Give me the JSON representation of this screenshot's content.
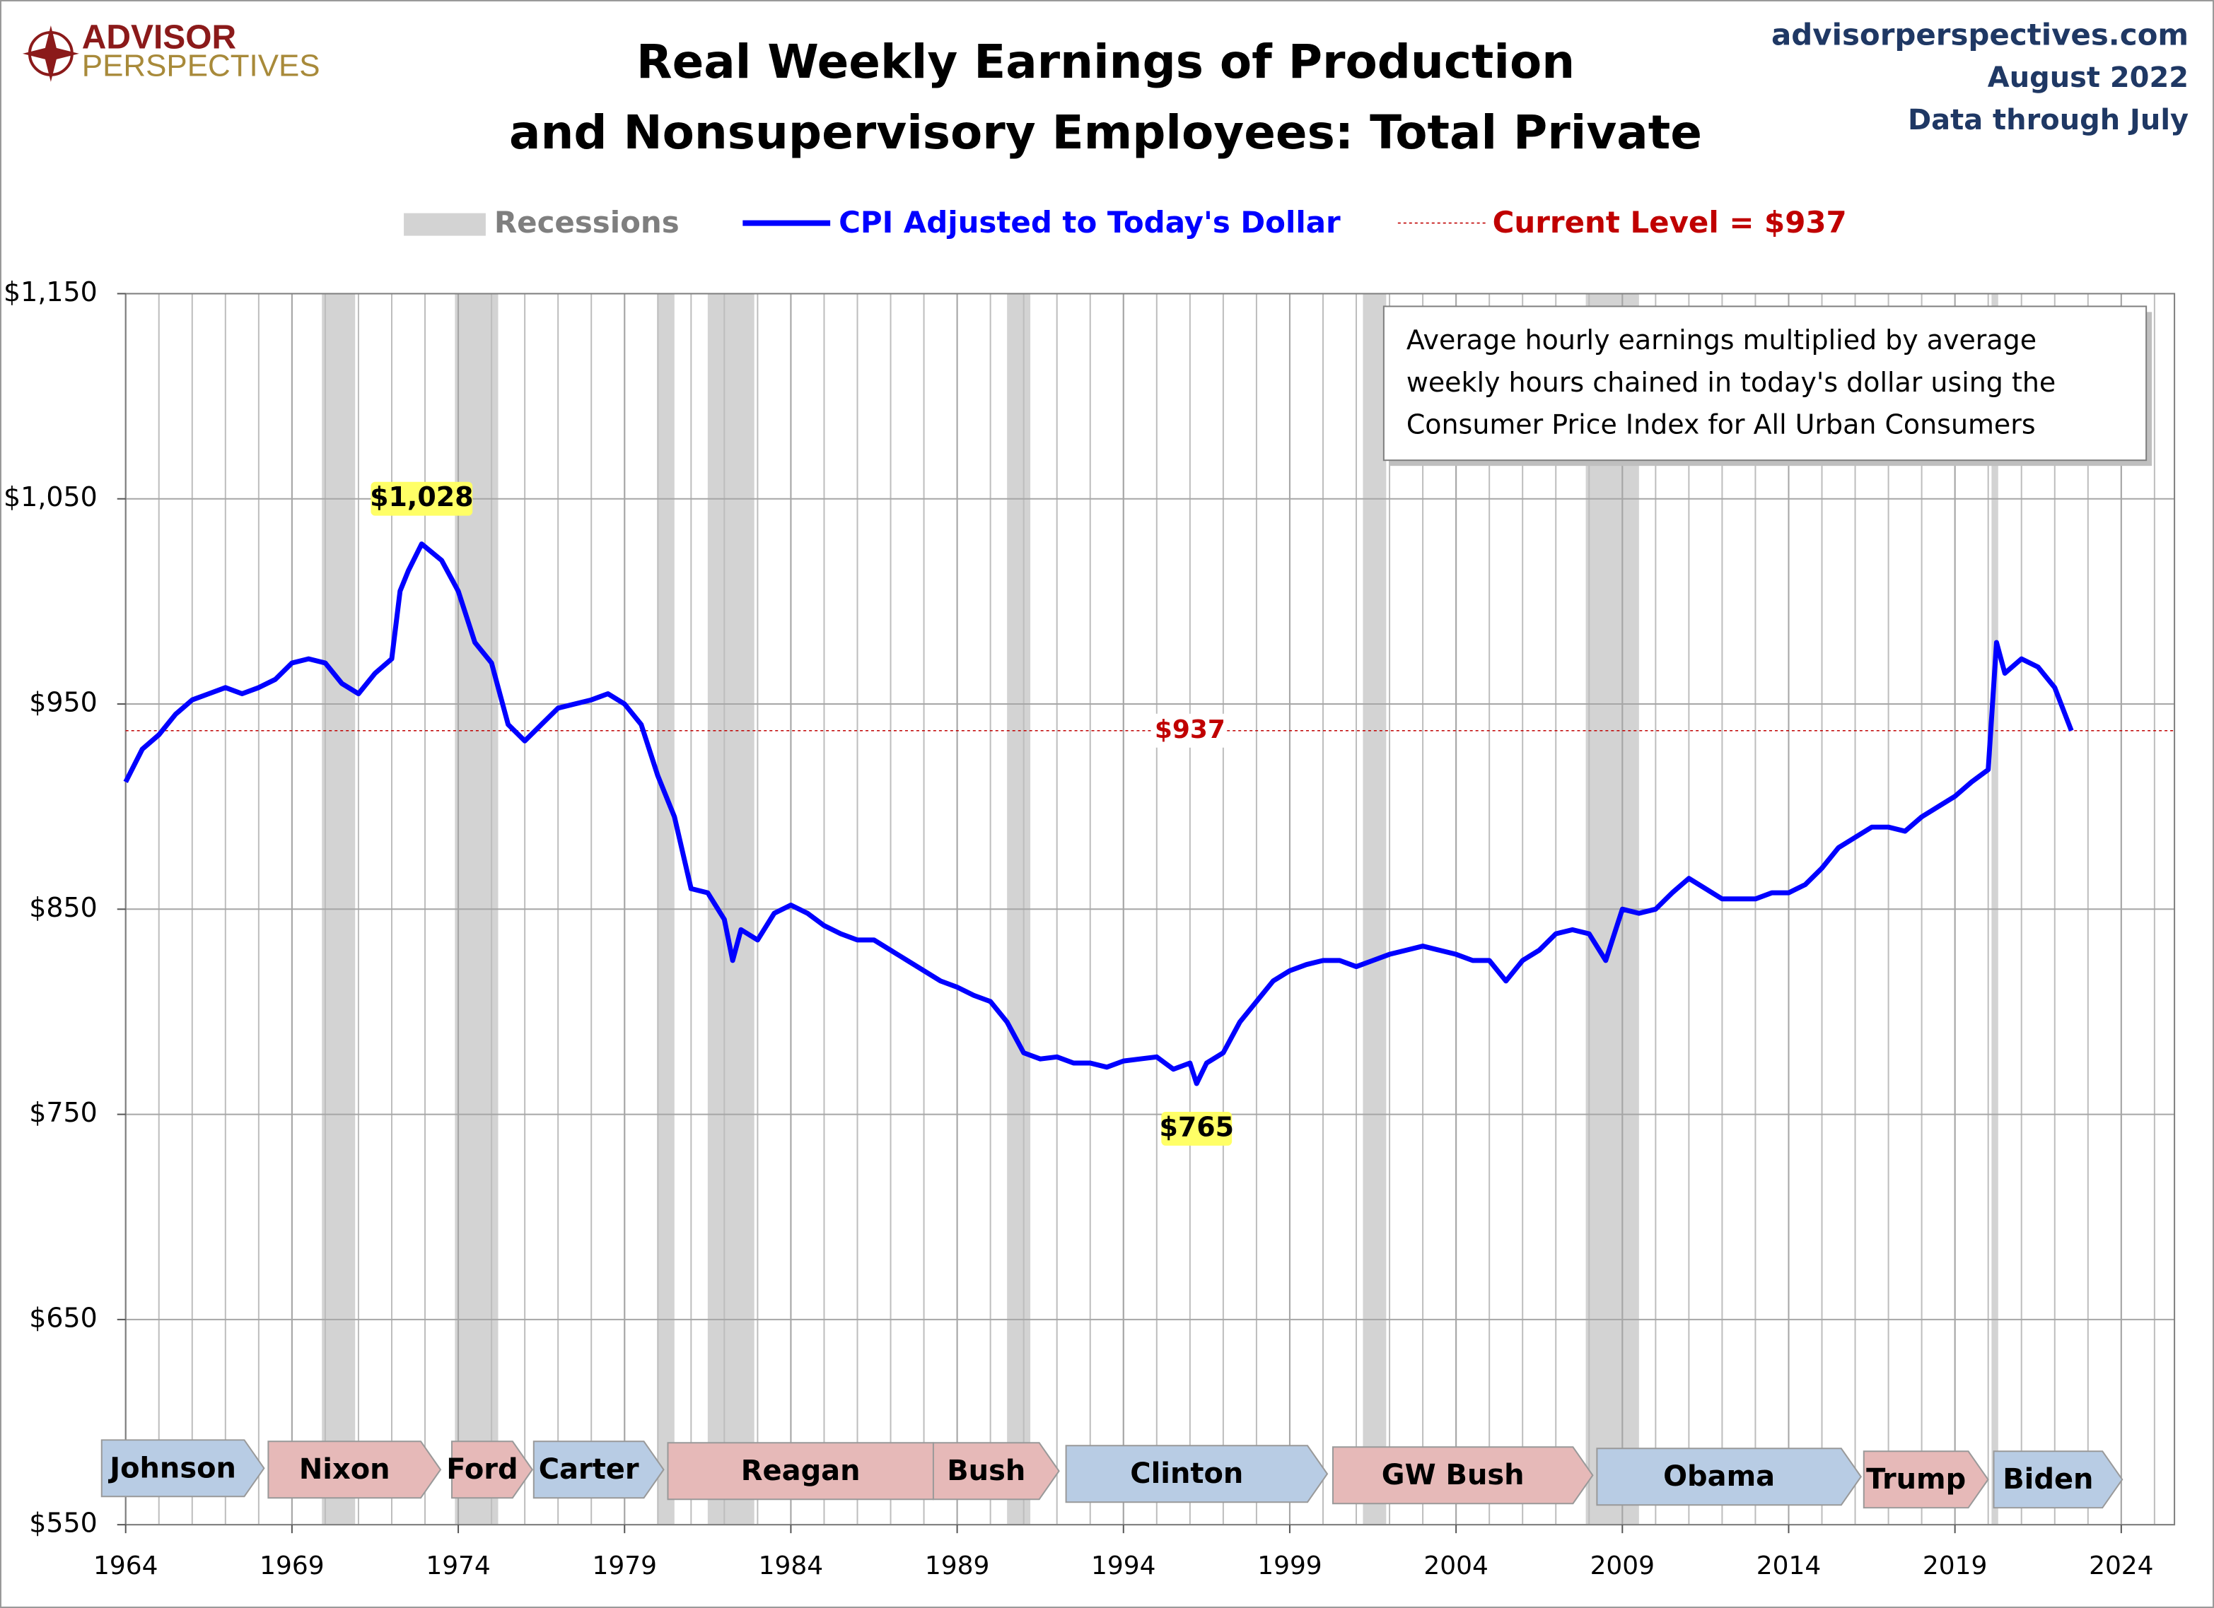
{
  "chart_data": {
    "type": "line",
    "title": [
      "Real Weekly Earnings of Production",
      "and Nonsupervisory Employees: Total Private"
    ],
    "logo": [
      "ADVISOR",
      "PERSPECTIVES"
    ],
    "source": [
      "advisorperspectives.com",
      "August 2022",
      "Data through July"
    ],
    "note": [
      "Average hourly earnings multiplied by average",
      "weekly hours chained in today's dollar using the",
      "Consumer Price Index for All Urban Consumers"
    ],
    "xlim": [
      1964,
      2025.6
    ],
    "xticks": [
      1964,
      1969,
      1974,
      1979,
      1984,
      1989,
      1994,
      1999,
      2004,
      2009,
      2014,
      2019,
      2024
    ],
    "ylim": [
      550,
      1150
    ],
    "yticks": [
      {
        "value": 550,
        "label": "$550"
      },
      {
        "value": 650,
        "label": "$650"
      },
      {
        "value": 750,
        "label": "$750"
      },
      {
        "value": 850,
        "label": "$850"
      },
      {
        "value": 950,
        "label": "$950"
      },
      {
        "value": 1050,
        "label": "$1,050"
      },
      {
        "value": 1150,
        "label": "$1,150"
      }
    ],
    "grid": true,
    "recessions": {
      "label": "Recessions",
      "color": "#d3d3d3",
      "periods": [
        [
          1969.9,
          1970.9
        ],
        [
          1973.9,
          1975.2
        ],
        [
          1980.0,
          1980.5
        ],
        [
          1981.5,
          1982.9
        ],
        [
          1990.5,
          1991.2
        ],
        [
          2001.2,
          2001.9
        ],
        [
          2007.9,
          2009.5
        ],
        [
          2020.1,
          2020.3
        ]
      ]
    },
    "x": [
      1964.0,
      1964.5,
      1965.0,
      1965.5,
      1966.0,
      1966.5,
      1967.0,
      1967.5,
      1968.0,
      1968.5,
      1969.0,
      1969.5,
      1970.0,
      1970.5,
      1971.0,
      1971.5,
      1972.0,
      1972.25,
      1972.5,
      1972.9,
      1973.5,
      1974.0,
      1974.5,
      1975.0,
      1975.5,
      1976.0,
      1976.5,
      1977.0,
      1977.5,
      1978.0,
      1978.5,
      1979.0,
      1979.5,
      1980.0,
      1980.5,
      1981.0,
      1981.5,
      1982.0,
      1982.25,
      1982.5,
      1983.0,
      1983.5,
      1984.0,
      1984.5,
      1985.0,
      1985.5,
      1986.0,
      1986.5,
      1987.0,
      1987.5,
      1988.0,
      1988.5,
      1989.0,
      1989.5,
      1990.0,
      1990.5,
      1991.0,
      1991.5,
      1992.0,
      1992.5,
      1993.0,
      1993.5,
      1994.0,
      1994.5,
      1995.0,
      1995.5,
      1996.0,
      1996.2,
      1996.5,
      1997.0,
      1997.5,
      1998.0,
      1998.5,
      1999.0,
      1999.5,
      2000.0,
      2000.5,
      2001.0,
      2001.5,
      2002.0,
      2002.5,
      2003.0,
      2003.5,
      2004.0,
      2004.5,
      2005.0,
      2005.5,
      2006.0,
      2006.5,
      2007.0,
      2007.5,
      2008.0,
      2008.5,
      2009.0,
      2009.5,
      2010.0,
      2010.5,
      2011.0,
      2011.5,
      2012.0,
      2012.5,
      2013.0,
      2013.5,
      2014.0,
      2014.5,
      2015.0,
      2015.5,
      2016.0,
      2016.5,
      2017.0,
      2017.5,
      2018.0,
      2018.5,
      2019.0,
      2019.5,
      2020.0,
      2020.25,
      2020.5,
      2021.0,
      2021.5,
      2022.0,
      2022.5
    ],
    "series": [
      {
        "name": "CPI Adjusted to Today's Dollar",
        "color": "#0000ff",
        "values": [
          912,
          928,
          935,
          945,
          952,
          955,
          958,
          955,
          958,
          962,
          970,
          972,
          970,
          960,
          955,
          965,
          972,
          1005,
          1015,
          1028,
          1020,
          1005,
          980,
          970,
          940,
          932,
          940,
          948,
          950,
          952,
          955,
          950,
          940,
          915,
          895,
          860,
          858,
          845,
          825,
          840,
          835,
          848,
          852,
          848,
          842,
          838,
          835,
          835,
          830,
          825,
          820,
          815,
          812,
          808,
          805,
          795,
          780,
          777,
          778,
          775,
          775,
          773,
          776,
          777,
          778,
          772,
          775,
          765,
          775,
          780,
          795,
          805,
          815,
          820,
          823,
          825,
          825,
          822,
          825,
          828,
          830,
          832,
          830,
          828,
          825,
          825,
          815,
          825,
          830,
          838,
          840,
          838,
          825,
          850,
          848,
          850,
          858,
          865,
          860,
          855,
          855,
          855,
          858,
          858,
          862,
          870,
          880,
          885,
          890,
          890,
          888,
          895,
          900,
          905,
          912,
          918,
          980,
          965,
          972,
          968,
          958,
          937
        ]
      }
    ],
    "current_level": {
      "value": 937,
      "label": "$937",
      "legend": "Current Level = $937",
      "color": "#c00000"
    },
    "annotations": [
      {
        "text": "$1,028",
        "x": 1972.9,
        "y": 1028
      },
      {
        "text": "$765",
        "x": 1996.2,
        "y": 765
      }
    ],
    "presidents": [
      {
        "name": "Johnson",
        "color": "#b8cce4"
      },
      {
        "name": "Nixon",
        "color": "#e6b9b8"
      },
      {
        "name": "Ford",
        "color": "#e6b9b8"
      },
      {
        "name": "Carter",
        "color": "#b8cce4"
      },
      {
        "name": "Reagan",
        "color": "#e6b9b8"
      },
      {
        "name": "Bush",
        "color": "#e6b9b8"
      },
      {
        "name": "Clinton",
        "color": "#b8cce4"
      },
      {
        "name": "GW Bush",
        "color": "#e6b9b8"
      },
      {
        "name": "Obama",
        "color": "#b8cce4"
      },
      {
        "name": "Trump",
        "color": "#e6b9b8"
      },
      {
        "name": "Biden",
        "color": "#b8cce4"
      }
    ]
  }
}
